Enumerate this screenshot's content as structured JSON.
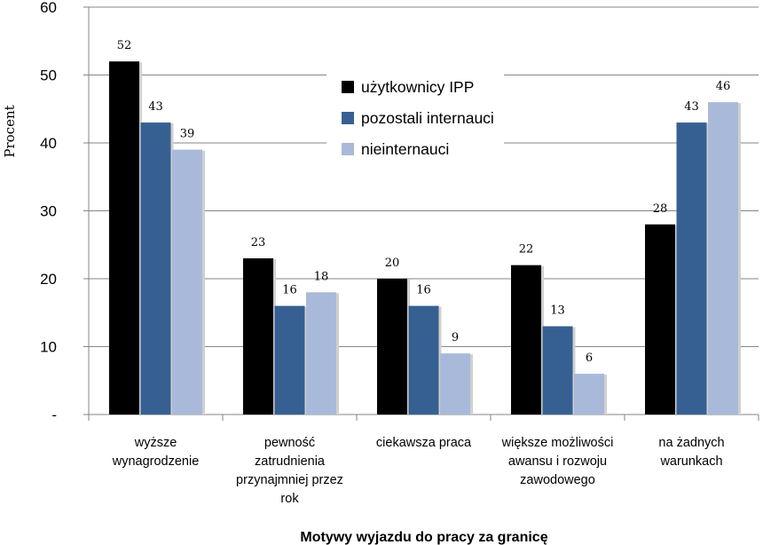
{
  "chart_data": {
    "type": "bar",
    "ylabel": "Procent",
    "xlabel": "Motywy wyjazdu do pracy za granicę",
    "ylim": [
      0,
      60
    ],
    "yticks": [
      {
        "value": 0,
        "label": "-"
      },
      {
        "value": 10,
        "label": "10"
      },
      {
        "value": 20,
        "label": "20"
      },
      {
        "value": 30,
        "label": "30"
      },
      {
        "value": 40,
        "label": "40"
      },
      {
        "value": 50,
        "label": "50"
      },
      {
        "value": 60,
        "label": "60"
      }
    ],
    "grid": true,
    "legend_position": "top-center",
    "categories": [
      [
        "wyższe",
        "wynagrodzenie"
      ],
      [
        "pewność",
        "zatrudnienia",
        "przynajmniej przez",
        "rok"
      ],
      [
        "ciekawsza praca"
      ],
      [
        "większe możliwości",
        "awansu i rozwoju",
        "zawodowego"
      ],
      [
        "na żadnych",
        "warunkach"
      ]
    ],
    "series": [
      {
        "name": "użytkownicy IPP",
        "color": "#000000",
        "values": [
          52,
          23,
          20,
          22,
          28
        ]
      },
      {
        "name": "pozostali internauci",
        "color": "#376092",
        "values": [
          43,
          16,
          16,
          13,
          43
        ]
      },
      {
        "name": "nieinternauci",
        "color": "#a9b9d9",
        "values": [
          39,
          18,
          9,
          6,
          46
        ]
      }
    ]
  }
}
